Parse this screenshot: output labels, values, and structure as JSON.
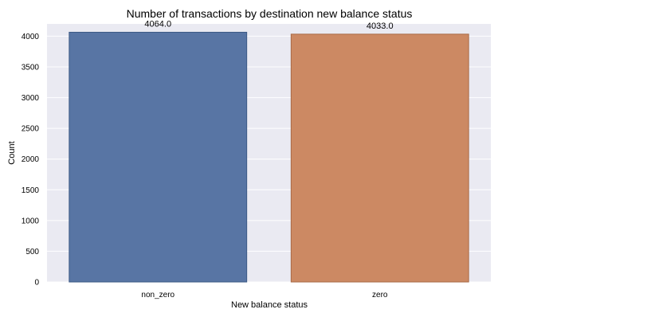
{
  "chart_data": {
    "type": "bar",
    "title": "Number of transactions by destination new balance status",
    "xlabel": "New balance status",
    "ylabel": "Count",
    "categories": [
      "non_zero",
      "zero"
    ],
    "values": [
      4064,
      4033
    ],
    "data_labels": [
      "4064.0",
      "4033.0"
    ],
    "colors": [
      "#5875a4",
      "#cc8963"
    ],
    "edge_colors": [
      "#3d5a85",
      "#a86a47"
    ],
    "ylim": [
      0,
      4200
    ],
    "yticks": [
      0,
      500,
      1000,
      1500,
      2000,
      2500,
      3000,
      3500,
      4000
    ],
    "grid": true,
    "background": "#eaeaf2",
    "legend": "none"
  }
}
